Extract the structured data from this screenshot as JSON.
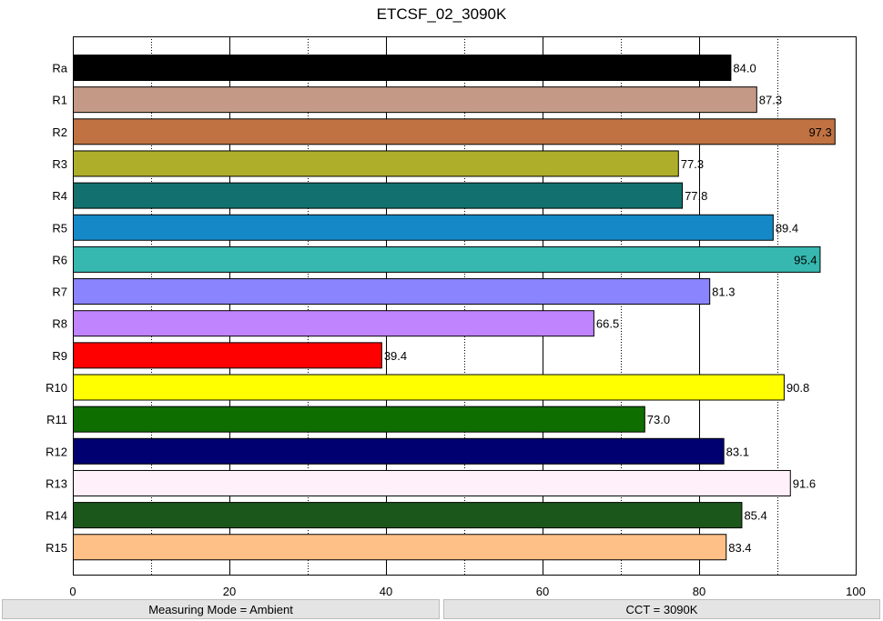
{
  "chart_data": {
    "type": "bar",
    "orientation": "horizontal",
    "title": "ETCSF_02_3090K",
    "categories": [
      "Ra",
      "R1",
      "R2",
      "R3",
      "R4",
      "R5",
      "R6",
      "R7",
      "R8",
      "R9",
      "R10",
      "R11",
      "R12",
      "R13",
      "R14",
      "R15"
    ],
    "values": [
      84.0,
      87.3,
      97.3,
      77.3,
      77.8,
      89.4,
      95.4,
      81.3,
      66.5,
      39.4,
      90.8,
      73.0,
      83.1,
      91.6,
      85.4,
      83.4
    ],
    "value_labels": [
      "84.0",
      "87.3",
      "97.3",
      "77.3",
      "77.8",
      "89.4",
      "95.4",
      "81.3",
      "66.5",
      "39.4",
      "90.8",
      "73.0",
      "83.1",
      "91.6",
      "85.4",
      "83.4"
    ],
    "colors": [
      "#000000",
      "#c49a86",
      "#c07242",
      "#afae2a",
      "#12716e",
      "#1589c8",
      "#36b8b0",
      "#8b84ff",
      "#c084ff",
      "#ff0000",
      "#ffff00",
      "#0e6e00",
      "#000070",
      "#fff0fa",
      "#1b561a",
      "#ffc088"
    ],
    "xlim": [
      0,
      100
    ],
    "x_ticks": [
      0,
      20,
      40,
      60,
      80,
      100
    ],
    "x_tick_labels": [
      "0",
      "20",
      "40",
      "60",
      "80",
      "100"
    ],
    "grid": true,
    "legend": "none"
  },
  "status": {
    "mode_label": "Measuring Mode = Ambient",
    "cct_label": "CCT = 3090K"
  }
}
